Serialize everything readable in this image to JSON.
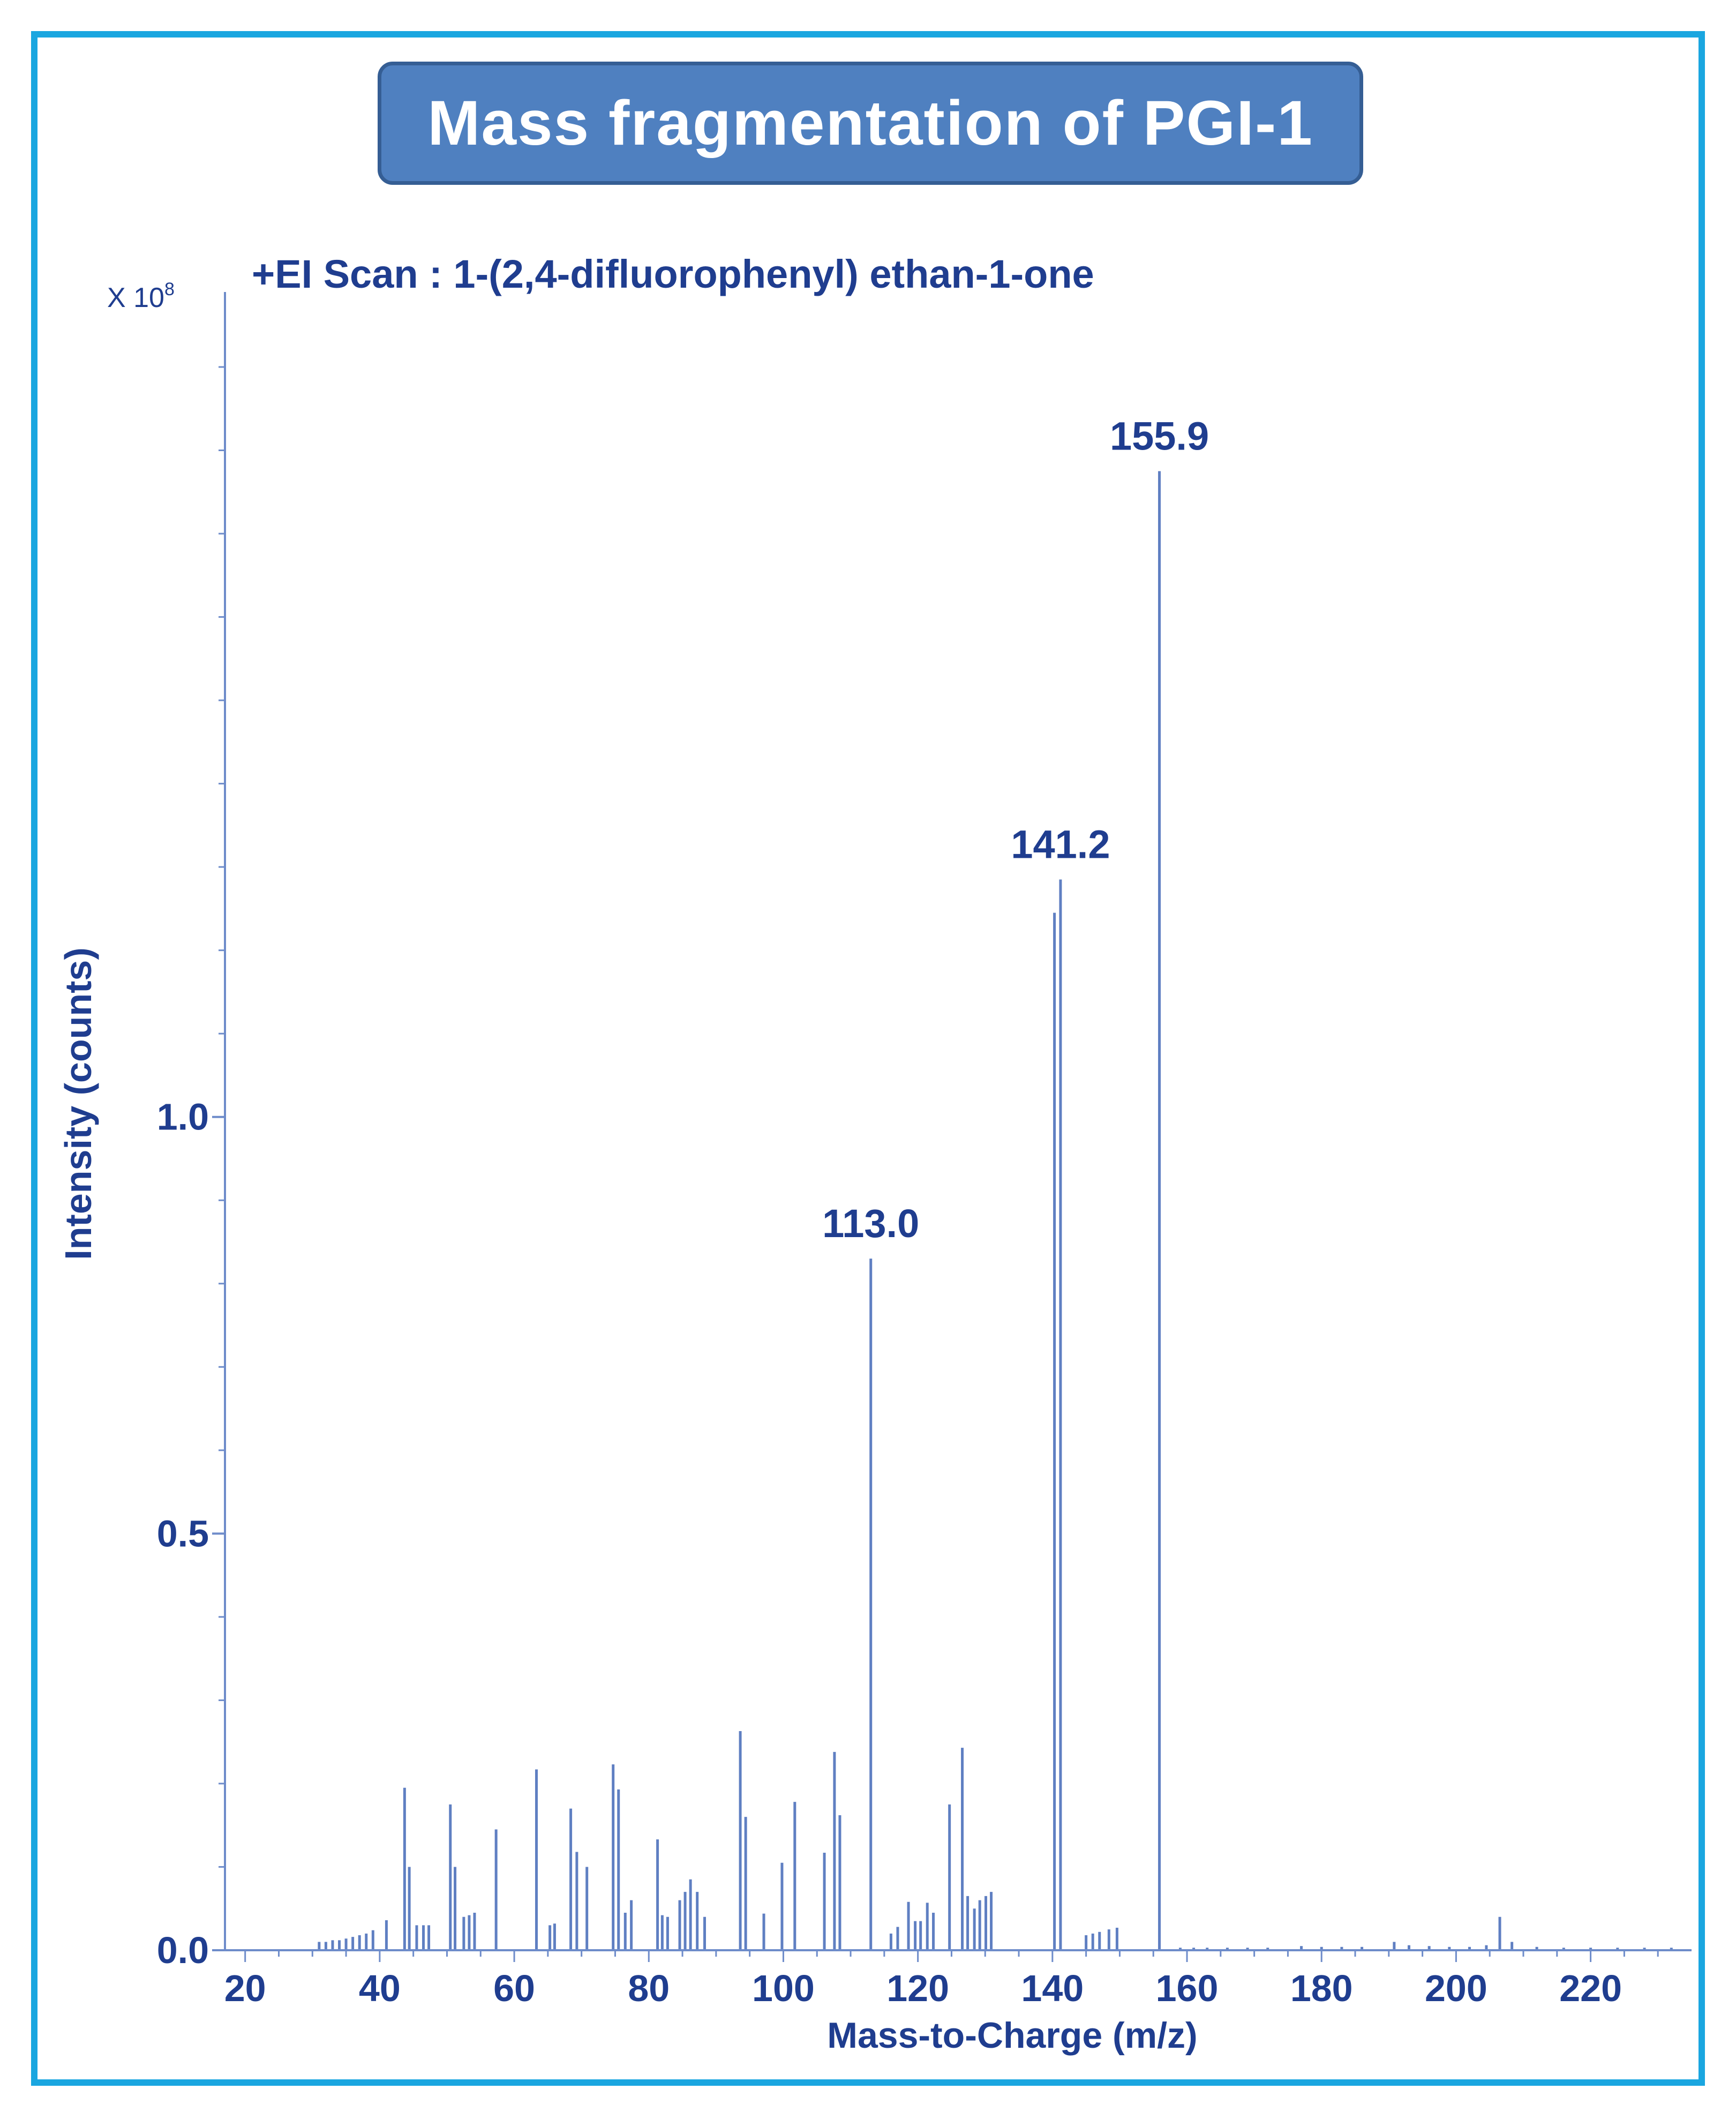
{
  "title": "Mass fragmentation of PGI-1",
  "chart_data": {
    "type": "bar",
    "subtitle": "+EI Scan : 1-(2,4-difluorophenyl) ethan-1-one",
    "xlabel": "Mass-to-Charge (m/z)",
    "ylabel": "Intensity (counts)",
    "y_multiplier": "X 10",
    "y_multiplier_exp": "8",
    "xlim": [
      17,
      235
    ],
    "ylim": [
      0,
      1.99
    ],
    "x_ticks": [
      20,
      40,
      60,
      80,
      100,
      120,
      140,
      160,
      180,
      200,
      220
    ],
    "y_ticks": [
      0.0,
      0.5,
      1.0
    ],
    "y_tick_labels": [
      "0.0",
      "0.5",
      "1.0"
    ],
    "colors": {
      "peaks": "#5f7fc2",
      "axis": "#6e8cca",
      "text": "#1f3d8f"
    },
    "peak_labels": [
      {
        "text": "113.0",
        "mz": 113.0
      },
      {
        "text": "141.2",
        "mz": 141.2
      },
      {
        "text": "155.9",
        "mz": 155.9
      }
    ],
    "peaks": [
      {
        "mz": 31,
        "intensity": 0.01
      },
      {
        "mz": 32,
        "intensity": 0.01
      },
      {
        "mz": 33,
        "intensity": 0.012
      },
      {
        "mz": 34,
        "intensity": 0.012
      },
      {
        "mz": 35,
        "intensity": 0.014
      },
      {
        "mz": 36,
        "intensity": 0.016
      },
      {
        "mz": 37,
        "intensity": 0.018
      },
      {
        "mz": 38,
        "intensity": 0.02
      },
      {
        "mz": 39,
        "intensity": 0.024
      },
      {
        "mz": 41,
        "intensity": 0.036
      },
      {
        "mz": 43.7,
        "intensity": 0.195
      },
      {
        "mz": 44.4,
        "intensity": 0.1
      },
      {
        "mz": 45.5,
        "intensity": 0.03
      },
      {
        "mz": 46.5,
        "intensity": 0.03
      },
      {
        "mz": 47.3,
        "intensity": 0.03
      },
      {
        "mz": 50.5,
        "intensity": 0.175
      },
      {
        "mz": 51.2,
        "intensity": 0.1
      },
      {
        "mz": 52.5,
        "intensity": 0.04
      },
      {
        "mz": 53.3,
        "intensity": 0.042
      },
      {
        "mz": 54.1,
        "intensity": 0.045
      },
      {
        "mz": 57.3,
        "intensity": 0.145
      },
      {
        "mz": 63.3,
        "intensity": 0.217
      },
      {
        "mz": 65.3,
        "intensity": 0.03
      },
      {
        "mz": 66,
        "intensity": 0.032
      },
      {
        "mz": 68.4,
        "intensity": 0.17
      },
      {
        "mz": 69.3,
        "intensity": 0.118
      },
      {
        "mz": 70.8,
        "intensity": 0.1
      },
      {
        "mz": 74.7,
        "intensity": 0.223
      },
      {
        "mz": 75.5,
        "intensity": 0.193
      },
      {
        "mz": 76.5,
        "intensity": 0.045
      },
      {
        "mz": 77.4,
        "intensity": 0.06
      },
      {
        "mz": 81.3,
        "intensity": 0.133
      },
      {
        "mz": 82,
        "intensity": 0.042
      },
      {
        "mz": 82.8,
        "intensity": 0.04
      },
      {
        "mz": 84.6,
        "intensity": 0.06
      },
      {
        "mz": 85.4,
        "intensity": 0.07
      },
      {
        "mz": 86.2,
        "intensity": 0.085
      },
      {
        "mz": 87.2,
        "intensity": 0.07
      },
      {
        "mz": 88.3,
        "intensity": 0.04
      },
      {
        "mz": 93.6,
        "intensity": 0.263
      },
      {
        "mz": 94.4,
        "intensity": 0.16
      },
      {
        "mz": 97.1,
        "intensity": 0.044
      },
      {
        "mz": 99.8,
        "intensity": 0.105
      },
      {
        "mz": 101.7,
        "intensity": 0.178
      },
      {
        "mz": 106.1,
        "intensity": 0.117
      },
      {
        "mz": 107.6,
        "intensity": 0.238
      },
      {
        "mz": 108.4,
        "intensity": 0.162
      },
      {
        "mz": 113.0,
        "intensity": 0.83
      },
      {
        "mz": 116,
        "intensity": 0.02
      },
      {
        "mz": 117,
        "intensity": 0.028
      },
      {
        "mz": 118.6,
        "intensity": 0.058
      },
      {
        "mz": 119.6,
        "intensity": 0.035
      },
      {
        "mz": 120.4,
        "intensity": 0.035
      },
      {
        "mz": 121.4,
        "intensity": 0.057
      },
      {
        "mz": 122.3,
        "intensity": 0.045
      },
      {
        "mz": 124.7,
        "intensity": 0.175
      },
      {
        "mz": 126.6,
        "intensity": 0.243
      },
      {
        "mz": 127.4,
        "intensity": 0.065
      },
      {
        "mz": 128.4,
        "intensity": 0.05
      },
      {
        "mz": 129.2,
        "intensity": 0.06
      },
      {
        "mz": 130.1,
        "intensity": 0.065
      },
      {
        "mz": 130.9,
        "intensity": 0.07
      },
      {
        "mz": 140.3,
        "intensity": 1.245
      },
      {
        "mz": 141.2,
        "intensity": 1.285
      },
      {
        "mz": 145,
        "intensity": 0.018
      },
      {
        "mz": 146,
        "intensity": 0.02
      },
      {
        "mz": 147,
        "intensity": 0.022
      },
      {
        "mz": 148.4,
        "intensity": 0.025
      },
      {
        "mz": 149.6,
        "intensity": 0.027
      },
      {
        "mz": 155.9,
        "intensity": 1.775
      },
      {
        "mz": 159,
        "intensity": 0.003
      },
      {
        "mz": 161,
        "intensity": 0.003
      },
      {
        "mz": 163,
        "intensity": 0.003
      },
      {
        "mz": 166,
        "intensity": 0.003
      },
      {
        "mz": 169,
        "intensity": 0.003
      },
      {
        "mz": 172,
        "intensity": 0.003
      },
      {
        "mz": 177,
        "intensity": 0.005
      },
      {
        "mz": 180,
        "intensity": 0.004
      },
      {
        "mz": 183,
        "intensity": 0.004
      },
      {
        "mz": 186,
        "intensity": 0.004
      },
      {
        "mz": 190.8,
        "intensity": 0.01
      },
      {
        "mz": 193,
        "intensity": 0.006
      },
      {
        "mz": 196,
        "intensity": 0.005
      },
      {
        "mz": 199,
        "intensity": 0.004
      },
      {
        "mz": 202,
        "intensity": 0.004
      },
      {
        "mz": 204.5,
        "intensity": 0.006
      },
      {
        "mz": 206.5,
        "intensity": 0.04
      },
      {
        "mz": 208.3,
        "intensity": 0.01
      },
      {
        "mz": 212,
        "intensity": 0.004
      },
      {
        "mz": 216,
        "intensity": 0.003
      },
      {
        "mz": 220,
        "intensity": 0.003
      },
      {
        "mz": 224,
        "intensity": 0.003
      },
      {
        "mz": 228,
        "intensity": 0.003
      },
      {
        "mz": 232,
        "intensity": 0.003
      }
    ]
  }
}
